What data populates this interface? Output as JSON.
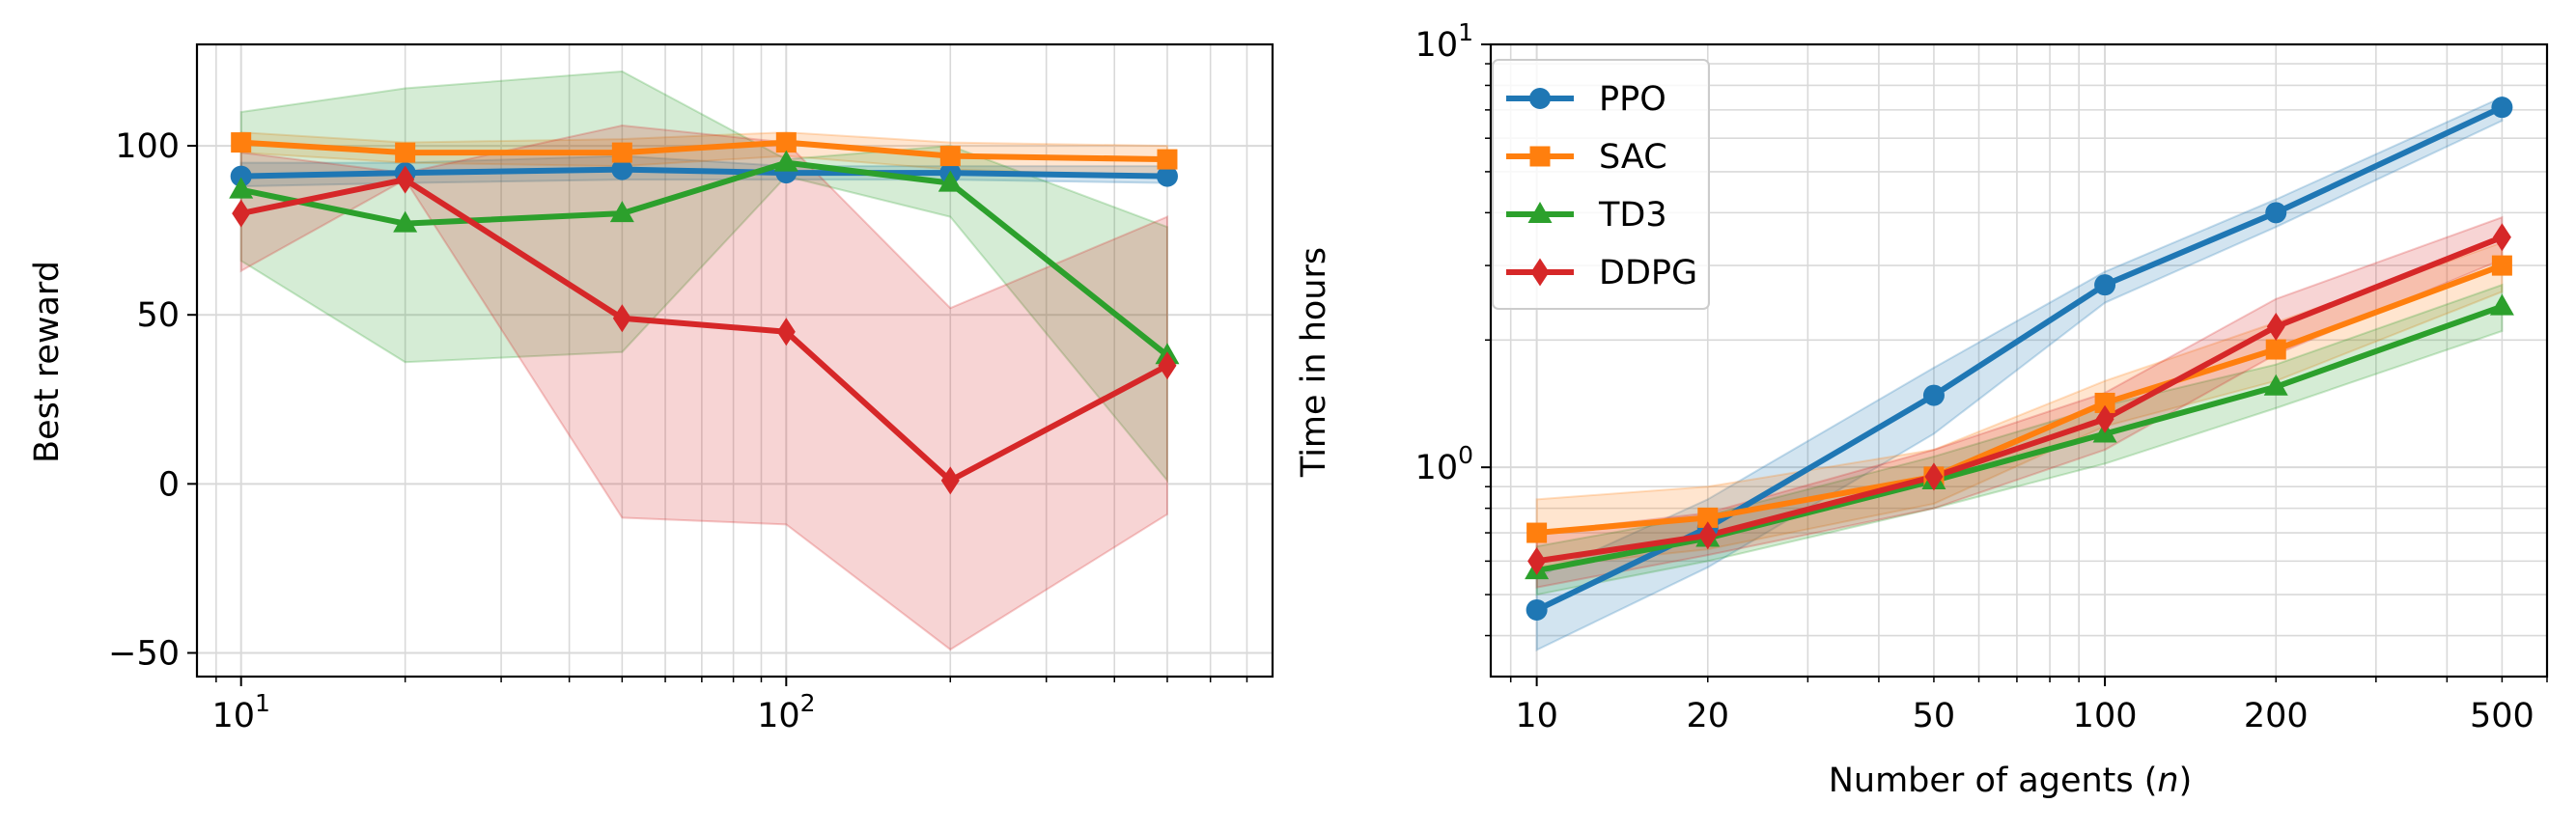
{
  "chart_data": [
    {
      "type": "line",
      "title": "",
      "xlabel": "",
      "ylabel": "Best reward",
      "xscale": "log",
      "yscale": "linear",
      "xlim": [
        8.3,
        780
      ],
      "ylim": [
        -57,
        130
      ],
      "grid": "both major and minor, light gray",
      "x": [
        10,
        20,
        50,
        100,
        200,
        500
      ],
      "x_ticks": [
        {
          "base": "10",
          "exp": "1",
          "value": 10
        },
        {
          "base": "10",
          "exp": "2",
          "value": 100
        }
      ],
      "y_ticks": [
        {
          "label": "100",
          "value": 100
        },
        {
          "label": "50",
          "value": 50
        },
        {
          "label": "0",
          "value": 0
        },
        {
          "label": "−50",
          "value": -50
        }
      ],
      "series": [
        {
          "name": "PPO",
          "color": "#1f77b4",
          "marker": "circle",
          "values": [
            91,
            92,
            93,
            92,
            92,
            91
          ],
          "lower": [
            88,
            89,
            90,
            90,
            90,
            89
          ],
          "upper": [
            95,
            95,
            97,
            94,
            94,
            94
          ]
        },
        {
          "name": "SAC",
          "color": "#ff7f0e",
          "marker": "square",
          "values": [
            101,
            98,
            98,
            101,
            97,
            96
          ],
          "lower": [
            98,
            95,
            94,
            97,
            93,
            91
          ],
          "upper": [
            104,
            101,
            102,
            104,
            101,
            100
          ]
        },
        {
          "name": "TD3",
          "color": "#2ca02c",
          "marker": "triangle",
          "values": [
            87,
            77,
            80,
            95,
            89,
            38
          ],
          "lower": [
            66,
            36,
            39,
            91,
            79,
            1
          ],
          "upper": [
            110,
            117,
            122,
            96,
            100,
            76
          ]
        },
        {
          "name": "DDPG",
          "color": "#d62728",
          "marker": "diamond",
          "values": [
            80,
            90,
            49,
            45,
            1,
            35
          ],
          "lower": [
            63,
            90,
            -10,
            -12,
            -49,
            -9
          ],
          "upper": [
            98,
            92,
            106,
            101,
            52,
            79
          ]
        }
      ]
    },
    {
      "type": "line",
      "title": "",
      "xlabel_text": "Number of agents (",
      "xlabel_var": "n",
      "xlabel_close": ")",
      "ylabel": "Time in hours",
      "xscale": "log",
      "yscale": "log",
      "xlim": [
        8.3,
        600
      ],
      "ylim": [
        0.32,
        10
      ],
      "grid": "both major and minor, light gray",
      "legend": "top-left",
      "x": [
        10,
        20,
        50,
        100,
        200,
        500
      ],
      "x_ticks": [
        {
          "label": "10",
          "value": 10
        },
        {
          "label": "20",
          "value": 20
        },
        {
          "label": "50",
          "value": 50
        },
        {
          "label": "100",
          "value": 100
        },
        {
          "label": "200",
          "value": 200
        },
        {
          "label": "500",
          "value": 500
        }
      ],
      "y_ticks": [
        {
          "base": "10",
          "exp": "1",
          "value": 10
        },
        {
          "base": "10",
          "exp": "0",
          "value": 1
        }
      ],
      "series": [
        {
          "name": "PPO",
          "color": "#1f77b4",
          "marker": "circle",
          "values": [
            0.46,
            0.72,
            1.48,
            2.7,
            4.0,
            7.1
          ],
          "lower": [
            0.37,
            0.58,
            1.2,
            2.45,
            3.7,
            6.6
          ],
          "upper": [
            0.55,
            0.84,
            1.72,
            2.9,
            4.3,
            7.5
          ]
        },
        {
          "name": "SAC",
          "color": "#ff7f0e",
          "marker": "square",
          "values": [
            0.7,
            0.76,
            0.95,
            1.42,
            1.9,
            3.0
          ],
          "lower": [
            0.58,
            0.64,
            0.82,
            1.25,
            1.6,
            2.6
          ],
          "upper": [
            0.84,
            0.9,
            1.1,
            1.6,
            2.2,
            3.4
          ]
        },
        {
          "name": "TD3",
          "color": "#2ca02c",
          "marker": "triangle",
          "values": [
            0.57,
            0.68,
            0.93,
            1.2,
            1.55,
            2.4
          ],
          "lower": [
            0.5,
            0.6,
            0.8,
            1.02,
            1.38,
            2.1
          ],
          "upper": [
            0.65,
            0.77,
            1.06,
            1.4,
            1.75,
            2.7
          ]
        },
        {
          "name": "DDPG",
          "color": "#d62728",
          "marker": "diamond",
          "values": [
            0.6,
            0.69,
            0.95,
            1.3,
            2.15,
            3.5
          ],
          "lower": [
            0.52,
            0.62,
            0.8,
            1.1,
            1.85,
            3.1
          ],
          "upper": [
            0.7,
            0.78,
            1.1,
            1.5,
            2.5,
            3.9
          ]
        }
      ]
    }
  ]
}
